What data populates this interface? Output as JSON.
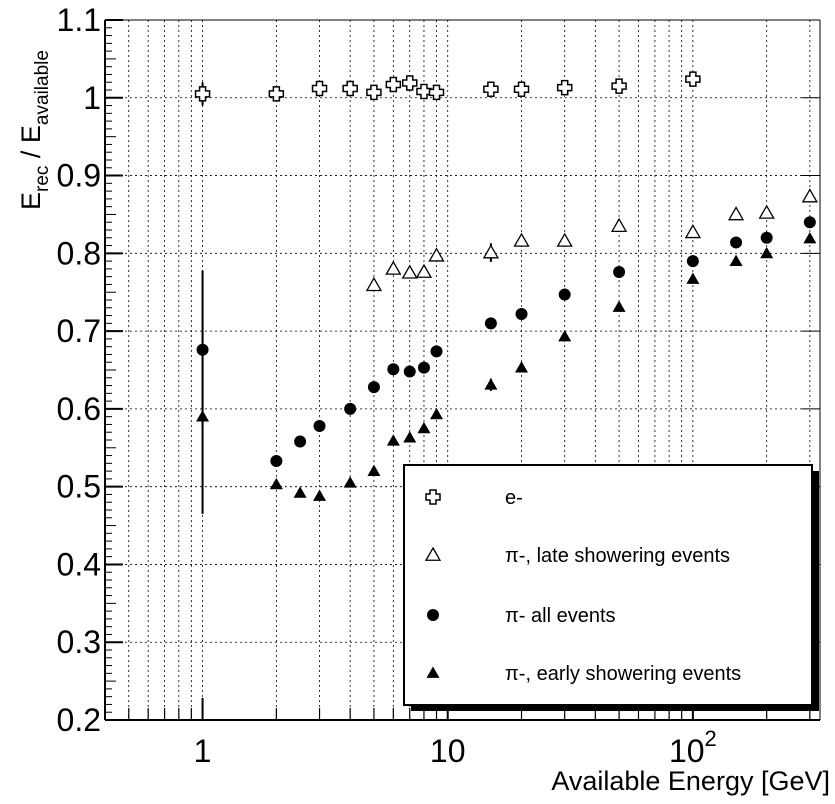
{
  "chart_data": {
    "type": "scatter",
    "x_scale": "log",
    "xlim": [
      0.4,
      330
    ],
    "ylim": [
      0.2,
      1.1
    ],
    "grid": true,
    "xlabel": "Available Energy [GeV]",
    "ylabel": {
      "main": "E",
      "sub_rec": "rec",
      "sep": " / E",
      "sub_avail": "available"
    },
    "y_ticks": [
      "0.2",
      "0.3",
      "0.4",
      "0.5",
      "0.6",
      "0.7",
      "0.8",
      "0.9",
      "1",
      "1.1"
    ],
    "x_tick_labels": [
      {
        "x": 1,
        "text": "1",
        "sup": ""
      },
      {
        "x": 10,
        "text": "10",
        "sup": ""
      },
      {
        "x": 100,
        "text": "10",
        "sup": "2"
      }
    ],
    "legend_position": "bottom-right",
    "series": [
      {
        "name": "e-",
        "marker": "open-cross",
        "points": [
          {
            "x": 1,
            "y": 1.005,
            "err": 0.015
          },
          {
            "x": 2,
            "y": 1.005
          },
          {
            "x": 3,
            "y": 1.012
          },
          {
            "x": 4,
            "y": 1.012
          },
          {
            "x": 5,
            "y": 1.007
          },
          {
            "x": 6,
            "y": 1.017
          },
          {
            "x": 7,
            "y": 1.019
          },
          {
            "x": 8,
            "y": 1.008
          },
          {
            "x": 9,
            "y": 1.007
          },
          {
            "x": 15,
            "y": 1.011
          },
          {
            "x": 20,
            "y": 1.011
          },
          {
            "x": 30,
            "y": 1.013
          },
          {
            "x": 50,
            "y": 1.015
          },
          {
            "x": 100,
            "y": 1.024
          }
        ]
      },
      {
        "name": "π-, late showering events",
        "marker": "open-triangle",
        "points": [
          {
            "x": 5,
            "y": 0.759
          },
          {
            "x": 6,
            "y": 0.78
          },
          {
            "x": 7,
            "y": 0.775
          },
          {
            "x": 8,
            "y": 0.776
          },
          {
            "x": 9,
            "y": 0.797
          },
          {
            "x": 15,
            "y": 0.801,
            "err": 0.012
          },
          {
            "x": 20,
            "y": 0.816
          },
          {
            "x": 30,
            "y": 0.816
          },
          {
            "x": 50,
            "y": 0.835
          },
          {
            "x": 100,
            "y": 0.827
          },
          {
            "x": 150,
            "y": 0.85
          },
          {
            "x": 200,
            "y": 0.852
          },
          {
            "x": 300,
            "y": 0.873
          }
        ]
      },
      {
        "name": "π- all events",
        "marker": "filled-circle",
        "points": [
          {
            "x": 1,
            "y": 0.676,
            "err": 0.102
          },
          {
            "x": 2,
            "y": 0.533
          },
          {
            "x": 2.5,
            "y": 0.558
          },
          {
            "x": 3,
            "y": 0.578
          },
          {
            "x": 4,
            "y": 0.6
          },
          {
            "x": 5,
            "y": 0.628
          },
          {
            "x": 6,
            "y": 0.651
          },
          {
            "x": 7,
            "y": 0.648
          },
          {
            "x": 8,
            "y": 0.653
          },
          {
            "x": 9,
            "y": 0.674
          },
          {
            "x": 15,
            "y": 0.71
          },
          {
            "x": 20,
            "y": 0.722
          },
          {
            "x": 30,
            "y": 0.747
          },
          {
            "x": 50,
            "y": 0.776
          },
          {
            "x": 100,
            "y": 0.79
          },
          {
            "x": 150,
            "y": 0.814
          },
          {
            "x": 200,
            "y": 0.82
          },
          {
            "x": 300,
            "y": 0.84
          }
        ]
      },
      {
        "name": "π-, early showering events",
        "marker": "filled-triangle",
        "points": [
          {
            "x": 1,
            "y": 0.59,
            "err": 0.125
          },
          {
            "x": 2,
            "y": 0.503
          },
          {
            "x": 2.5,
            "y": 0.492
          },
          {
            "x": 3,
            "y": 0.488
          },
          {
            "x": 4,
            "y": 0.505
          },
          {
            "x": 5,
            "y": 0.52
          },
          {
            "x": 6,
            "y": 0.559
          },
          {
            "x": 7,
            "y": 0.563
          },
          {
            "x": 8,
            "y": 0.575
          },
          {
            "x": 9,
            "y": 0.593
          },
          {
            "x": 15,
            "y": 0.631,
            "err": 0.008
          },
          {
            "x": 20,
            "y": 0.653
          },
          {
            "x": 30,
            "y": 0.693
          },
          {
            "x": 50,
            "y": 0.731
          },
          {
            "x": 100,
            "y": 0.767
          },
          {
            "x": 150,
            "y": 0.79
          },
          {
            "x": 200,
            "y": 0.8
          },
          {
            "x": 300,
            "y": 0.819
          }
        ]
      }
    ]
  }
}
